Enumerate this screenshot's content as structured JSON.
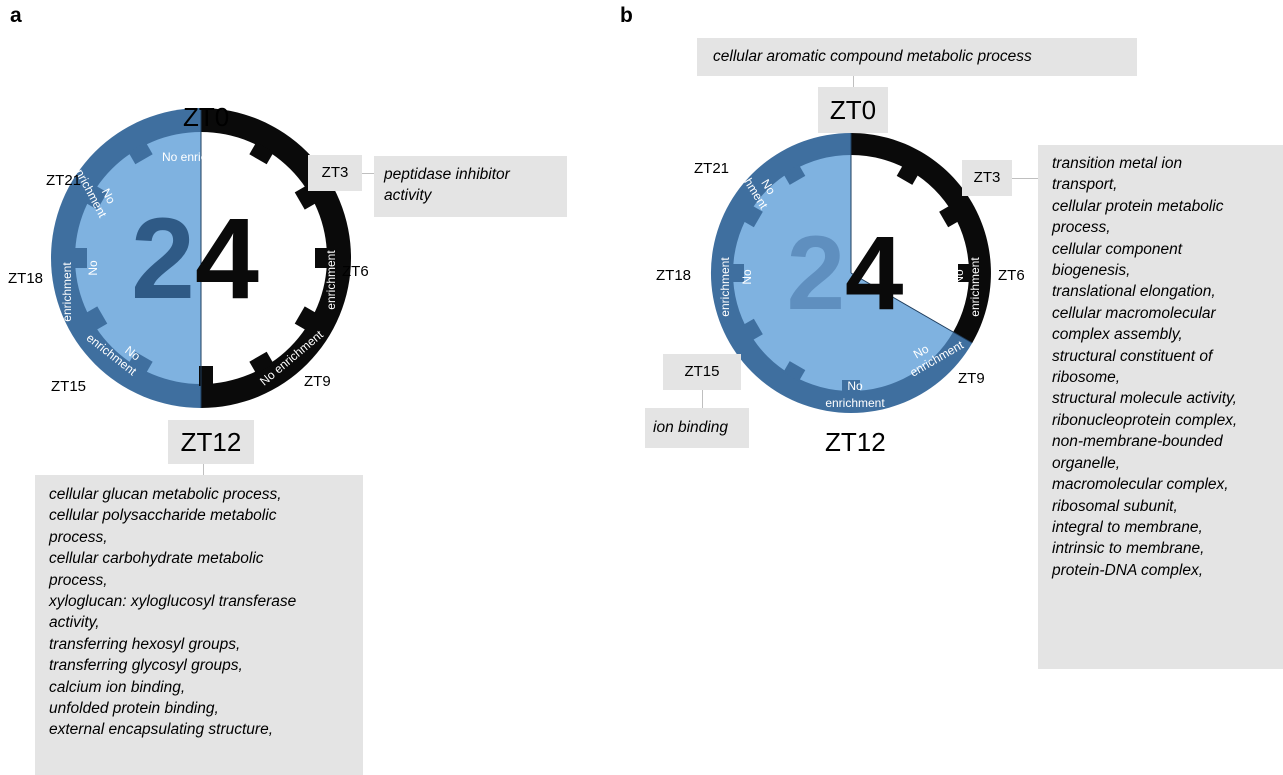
{
  "panel_a": {
    "letter": "a",
    "clock": {
      "center_numeral": "24",
      "labels": {
        "zt0": "ZT0",
        "zt3": "ZT3",
        "zt6": "ZT6",
        "zt9": "ZT9",
        "zt12": "ZT12",
        "zt15": "ZT15",
        "zt18": "ZT18",
        "zt21": "ZT21"
      },
      "enriched_fraction": 0.5,
      "ring_labels": {
        "top": "No enrichment",
        "right_no": "No",
        "right_enrich": "enrichment",
        "bottom_right": "No enrichment",
        "bottom_left_no": "No",
        "bottom_left_enrich": "enrichment",
        "left_no": "No",
        "left_enrich": "enrichment",
        "upper_left_no": "No",
        "upper_left_enrich": "enrichment"
      }
    },
    "zt3_terms": "peptidase inhibitor\nactivity",
    "zt12_terms": "cellular glucan metabolic process,\ncellular polysaccharide metabolic\nprocess,\ncellular carbohydrate metabolic\nprocess,\nxyloglucan: xyloglucosyl transferase\nactivity,\ntransferring hexosyl groups,\ntransferring glycosyl groups,\ncalcium ion binding,\nunfolded protein binding,\nexternal encapsulating structure,"
  },
  "panel_b": {
    "letter": "b",
    "clock": {
      "center_numeral": "24",
      "labels": {
        "zt0": "ZT0",
        "zt3": "ZT3",
        "zt6": "ZT6",
        "zt9": "ZT9",
        "zt12": "ZT12",
        "zt15": "ZT15",
        "zt18": "ZT18",
        "zt21": "ZT21"
      },
      "enriched_fraction": 0.333,
      "ring_labels": {
        "upper_left_no": "No",
        "upper_left_enrich": "enrichment",
        "left_no": "No",
        "left_enrich": "enrichment",
        "bottom_no": "No",
        "bottom_enrich": "enrichment",
        "right_no": "No",
        "right_enrich": "enrichment",
        "lower_right_no": "No",
        "lower_right_enrich": "enrichment"
      }
    },
    "zt0_terms": "cellular aromatic compound metabolic process",
    "zt3_terms": "transition metal ion\ntransport,\ncellular protein metabolic\nprocess,\ncellular component\nbiogenesis,\ntranslational elongation,\ncellular macromolecular\ncomplex assembly,\nstructural constituent of\nribosome,\nstructural molecule activity,\nribonucleoprotein complex,\nnon-membrane-bounded\norganelle,\nmacromolecular complex,\nribosomal subunit,\nintegral to membrane,\nintrinsic to membrane,\nprotein-DNA complex,",
    "zt15_terms": "ion binding"
  },
  "colors": {
    "light_blue": "#7fb2e0",
    "dark_blue": "#3f6f9f",
    "black": "#0a0a0a",
    "numeral_blue": "#2f5a86",
    "box_gray": "#e4e4e4"
  }
}
